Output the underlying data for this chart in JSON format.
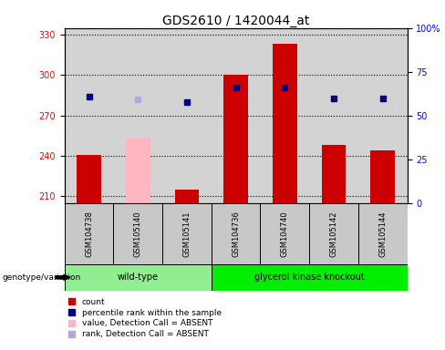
{
  "title": "GDS2610 / 1420044_at",
  "samples": [
    "GSM104738",
    "GSM105140",
    "GSM105141",
    "GSM104736",
    "GSM104740",
    "GSM105142",
    "GSM105144"
  ],
  "groups": [
    "wild-type",
    "wild-type",
    "wild-type",
    "glycerol kinase knockout",
    "glycerol kinase knockout",
    "glycerol kinase knockout",
    "glycerol kinase knockout"
  ],
  "count_values": [
    241,
    null,
    215,
    300,
    323,
    248,
    244
  ],
  "absent_bar_values": [
    null,
    253,
    null,
    null,
    null,
    null,
    null
  ],
  "rank_values": [
    284,
    null,
    280,
    291,
    291,
    283,
    283
  ],
  "absent_rank_values": [
    null,
    282,
    null,
    null,
    null,
    null,
    null
  ],
  "ylim_left": [
    205,
    335
  ],
  "ylim_right": [
    0,
    100
  ],
  "yticks_left": [
    210,
    240,
    270,
    300,
    330
  ],
  "yticks_right": [
    0,
    25,
    50,
    75,
    100
  ],
  "yticklabels_right": [
    "0",
    "25",
    "50",
    "75",
    "100%"
  ],
  "bar_color_red": "#CC0000",
  "bar_color_pink": "#FFB6C1",
  "dot_color_blue": "#00008B",
  "dot_color_lightblue": "#AAAADD",
  "bg_color": "#D3D3D3",
  "sample_box_color": "#C8C8C8",
  "group_wt_color": "#90EE90",
  "group_ko_color": "#00EE00",
  "legend_items": [
    {
      "label": "count",
      "color": "#CC0000"
    },
    {
      "label": "percentile rank within the sample",
      "color": "#00008B"
    },
    {
      "label": "value, Detection Call = ABSENT",
      "color": "#FFB6C1"
    },
    {
      "label": "rank, Detection Call = ABSENT",
      "color": "#AAAADD"
    }
  ]
}
